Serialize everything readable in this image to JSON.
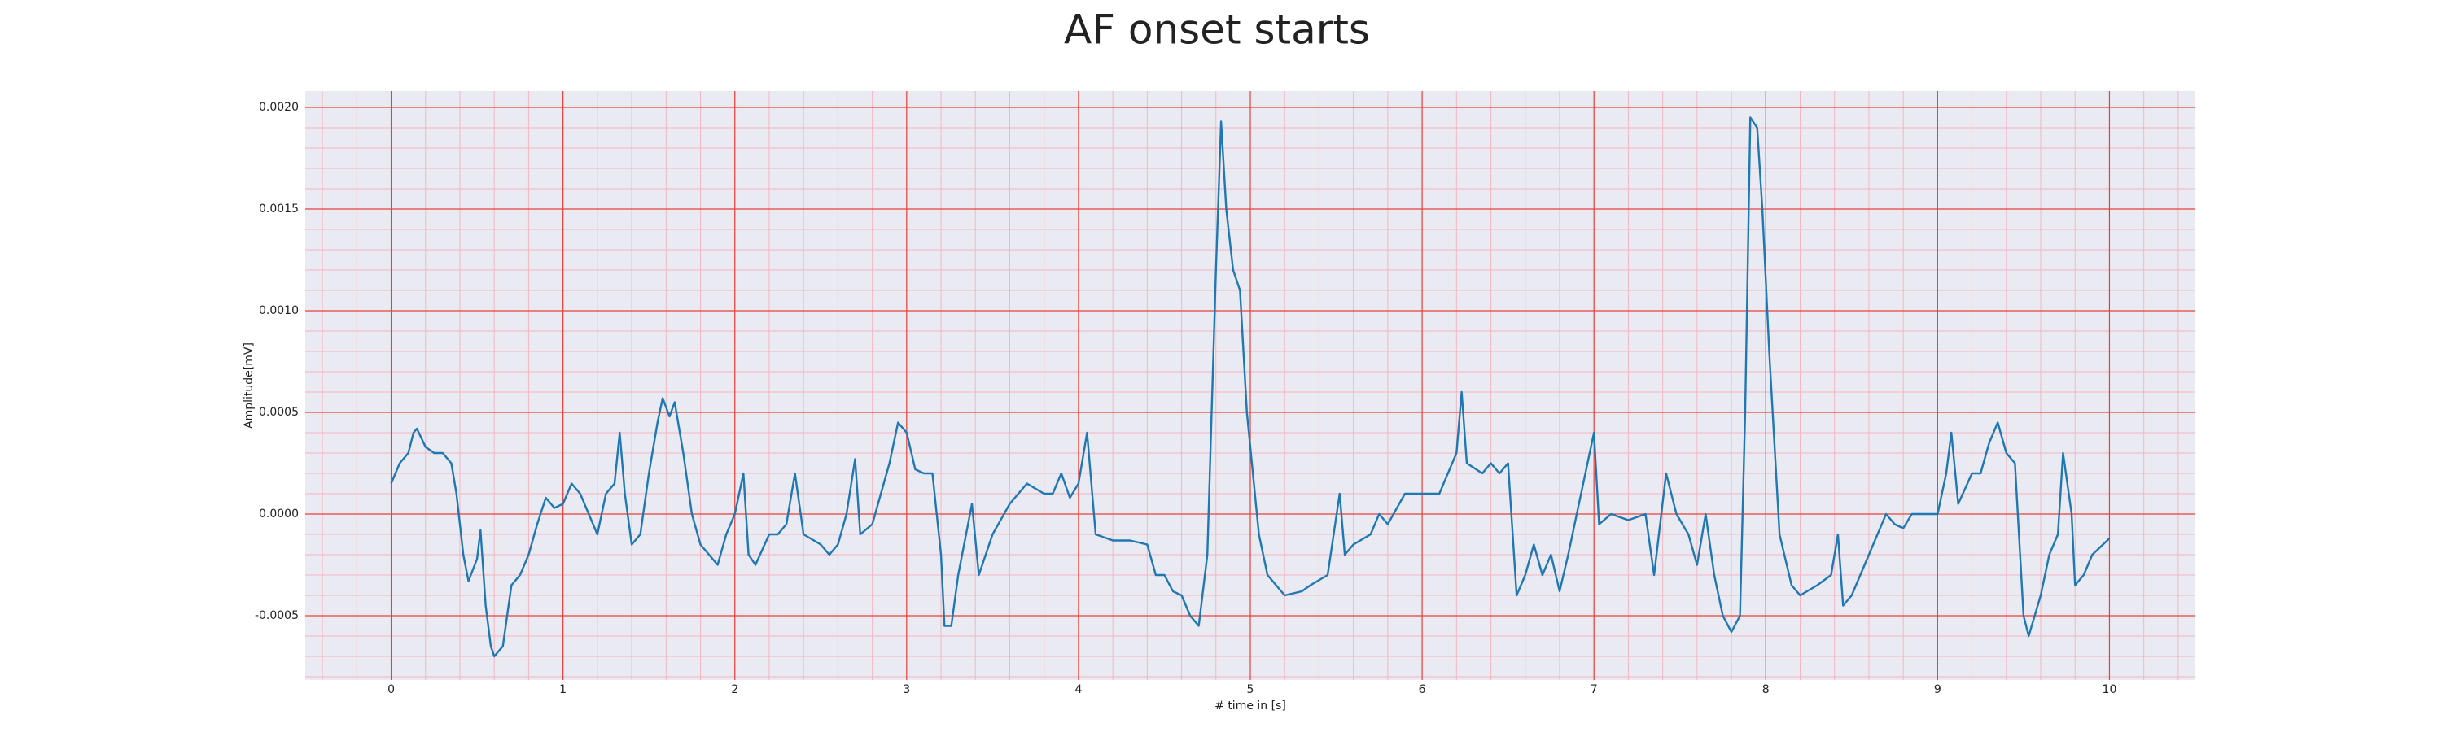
{
  "chart_data": {
    "type": "line",
    "title": "AF onset starts",
    "xlabel": "# time in [s]",
    "ylabel": "Amplitude[mV]",
    "x": [
      0,
      0.05,
      0.1,
      0.13,
      0.15,
      0.2,
      0.25,
      0.3,
      0.35,
      0.38,
      0.42,
      0.45,
      0.5,
      0.52,
      0.55,
      0.58,
      0.6,
      0.65,
      0.7,
      0.75,
      0.8,
      0.85,
      0.9,
      0.95,
      1.0,
      1.05,
      1.1,
      1.15,
      1.2,
      1.25,
      1.3,
      1.33,
      1.36,
      1.4,
      1.45,
      1.5,
      1.55,
      1.58,
      1.62,
      1.65,
      1.7,
      1.75,
      1.8,
      1.85,
      1.9,
      1.95,
      2.0,
      2.05,
      2.08,
      2.12,
      2.2,
      2.25,
      2.3,
      2.35,
      2.4,
      2.5,
      2.55,
      2.6,
      2.65,
      2.7,
      2.73,
      2.8,
      2.9,
      2.95,
      3.0,
      3.05,
      3.1,
      3.15,
      3.2,
      3.22,
      3.26,
      3.3,
      3.38,
      3.42,
      3.5,
      3.6,
      3.7,
      3.8,
      3.85,
      3.9,
      3.95,
      4.0,
      4.05,
      4.1,
      4.2,
      4.3,
      4.4,
      4.45,
      4.5,
      4.55,
      4.6,
      4.65,
      4.7,
      4.75,
      4.8,
      4.83,
      4.86,
      4.9,
      4.94,
      4.98,
      5.05,
      5.1,
      5.2,
      5.3,
      5.35,
      5.45,
      5.52,
      5.55,
      5.6,
      5.7,
      5.75,
      5.8,
      5.9,
      6.0,
      6.1,
      6.15,
      6.2,
      6.23,
      6.26,
      6.35,
      6.4,
      6.45,
      6.5,
      6.55,
      6.6,
      6.65,
      6.7,
      6.75,
      6.8,
      6.85,
      6.9,
      6.95,
      7.0,
      7.03,
      7.1,
      7.2,
      7.3,
      7.35,
      7.42,
      7.48,
      7.55,
      7.6,
      7.65,
      7.7,
      7.75,
      7.8,
      7.85,
      7.88,
      7.91,
      7.95,
      7.98,
      8.02,
      8.08,
      8.15,
      8.2,
      8.3,
      8.38,
      8.42,
      8.45,
      8.5,
      8.55,
      8.6,
      8.7,
      8.75,
      8.8,
      8.85,
      8.95,
      9.0,
      9.05,
      9.08,
      9.12,
      9.2,
      9.25,
      9.3,
      9.35,
      9.4,
      9.45,
      9.5,
      9.53,
      9.6,
      9.65,
      9.7,
      9.73,
      9.78,
      9.8,
      9.85,
      9.9,
      10.0
    ],
    "values": [
      0.00015,
      0.00025,
      0.0003,
      0.0004,
      0.00042,
      0.00033,
      0.0003,
      0.0003,
      0.00025,
      0.0001,
      -0.0002,
      -0.00033,
      -0.00022,
      -8e-05,
      -0.00045,
      -0.00065,
      -0.0007,
      -0.00065,
      -0.00035,
      -0.0003,
      -0.0002,
      -5e-05,
      8e-05,
      3e-05,
      5e-05,
      0.00015,
      0.0001,
      0,
      -0.0001,
      0.0001,
      0.00015,
      0.0004,
      0.0001,
      -0.00015,
      -0.0001,
      0.0002,
      0.00045,
      0.00057,
      0.00048,
      0.00055,
      0.0003,
      0,
      -0.00015,
      -0.0002,
      -0.00025,
      -0.0001,
      0,
      0.0002,
      -0.0002,
      -0.00025,
      -0.0001,
      -0.0001,
      -5e-05,
      0.0002,
      -0.0001,
      -0.00015,
      -0.0002,
      -0.00015,
      0,
      0.00027,
      -0.0001,
      -5e-05,
      0.00025,
      0.00045,
      0.0004,
      0.00022,
      0.0002,
      0.0002,
      -0.0002,
      -0.00055,
      -0.00055,
      -0.0003,
      5e-05,
      -0.0003,
      -0.0001,
      5e-05,
      0.00015,
      0.0001,
      0.0001,
      0.0002,
      8e-05,
      0.00015,
      0.0004,
      -0.0001,
      -0.00013,
      -0.00013,
      -0.00015,
      -0.0003,
      -0.0003,
      -0.00038,
      -0.0004,
      -0.0005,
      -0.00055,
      -0.0002,
      0.0012,
      0.00193,
      0.0015,
      0.0012,
      0.0011,
      0.0005,
      -0.0001,
      -0.0003,
      -0.0004,
      -0.00038,
      -0.00035,
      -0.0003,
      0.0001,
      -0.0002,
      -0.00015,
      -0.0001,
      0,
      -5e-05,
      0.0001,
      0.0001,
      0.0001,
      0.0002,
      0.0003,
      0.0006,
      0.00025,
      0.0002,
      0.00025,
      0.0002,
      0.00025,
      -0.0004,
      -0.0003,
      -0.00015,
      -0.0003,
      -0.0002,
      -0.00038,
      -0.0002,
      0,
      0.0002,
      0.0004,
      -5e-05,
      0,
      -3e-05,
      0,
      -0.0003,
      0.0002,
      0,
      -0.0001,
      -0.00025,
      0,
      -0.0003,
      -0.0005,
      -0.00058,
      -0.0005,
      0.0005,
      0.00195,
      0.0019,
      0.0015,
      0.0008,
      -0.0001,
      -0.00035,
      -0.0004,
      -0.00035,
      -0.0003,
      -0.0001,
      -0.00045,
      -0.0004,
      -0.0003,
      -0.0002,
      0,
      -5e-05,
      -7e-05,
      0,
      0,
      0,
      0.0002,
      0.0004,
      5e-05,
      0.0002,
      0.0002,
      0.00035,
      0.00045,
      0.0003,
      0.00025,
      -0.0005,
      -0.0006,
      -0.0004,
      -0.0002,
      -0.0001,
      0.0003,
      0,
      -0.00035,
      -0.0003,
      -0.0002,
      -0.00012
    ],
    "color": "#1f77b4",
    "xlim": [
      -0.5,
      10.5
    ],
    "xticks": [
      0,
      1,
      2,
      3,
      4,
      5,
      6,
      7,
      8,
      9,
      10
    ],
    "ylim": [
      -0.000816,
      0.00208
    ],
    "yticks": [
      {
        "value": -0.0005,
        "label": "-0.0005"
      },
      {
        "value": 0,
        "label": "0.0000"
      },
      {
        "value": 0.0005,
        "label": "0.0005"
      },
      {
        "value": 0.001,
        "label": "0.0010"
      },
      {
        "value": 0.0015,
        "label": "0.0015"
      },
      {
        "value": 0.002,
        "label": "0.0020"
      }
    ],
    "grid": true,
    "minor_grid": true
  }
}
